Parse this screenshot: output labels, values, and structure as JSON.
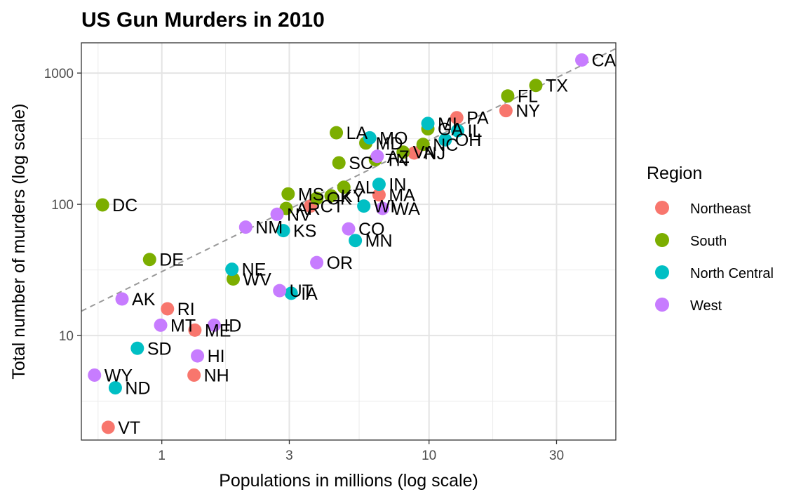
{
  "chart_data": {
    "type": "scatter",
    "title": "US Gun Murders in 2010",
    "xlabel": "Populations in millions (log scale)",
    "ylabel": "Total number of murders (log scale)",
    "x_scale": "log10",
    "y_scale": "log10",
    "xlim": [
      0.5,
      50
    ],
    "ylim": [
      1.6,
      1700
    ],
    "x_ticks": [
      1,
      3,
      10,
      30
    ],
    "y_ticks": [
      10,
      100,
      1000
    ],
    "grid": true,
    "legend": {
      "title": "Region",
      "position": "right"
    },
    "reference_line": {
      "style": "dashed",
      "color": "#999999",
      "slope": 1,
      "intercept": 1.4872
    },
    "series": [
      {
        "name": "Northeast",
        "color": "#F8766D",
        "points": [
          {
            "label": "PA",
            "x": 12.7,
            "y": 457
          },
          {
            "label": "NY",
            "x": 19.4,
            "y": 517
          },
          {
            "label": "NJ",
            "x": 8.8,
            "y": 246
          },
          {
            "label": "MA",
            "x": 6.5,
            "y": 118
          },
          {
            "label": "CT",
            "x": 3.6,
            "y": 97
          },
          {
            "label": "RI",
            "x": 1.05,
            "y": 16
          },
          {
            "label": "ME",
            "x": 1.33,
            "y": 11
          },
          {
            "label": "NH",
            "x": 1.32,
            "y": 5
          },
          {
            "label": "VT",
            "x": 0.63,
            "y": 2
          }
        ]
      },
      {
        "name": "South",
        "color": "#7CAE00",
        "points": [
          {
            "label": "TX",
            "x": 25.1,
            "y": 805
          },
          {
            "label": "FL",
            "x": 19.7,
            "y": 669
          },
          {
            "label": "GA",
            "x": 9.9,
            "y": 376
          },
          {
            "label": "NC",
            "x": 9.5,
            "y": 286
          },
          {
            "label": "VA",
            "x": 8.0,
            "y": 250
          },
          {
            "label": "TN",
            "x": 6.3,
            "y": 219
          },
          {
            "label": "MD",
            "x": 5.8,
            "y": 293
          },
          {
            "label": "LA",
            "x": 4.5,
            "y": 351
          },
          {
            "label": "SC",
            "x": 4.6,
            "y": 207
          },
          {
            "label": "AL",
            "x": 4.8,
            "y": 135
          },
          {
            "label": "KY",
            "x": 4.3,
            "y": 116
          },
          {
            "label": "OK",
            "x": 3.8,
            "y": 111
          },
          {
            "label": "MS",
            "x": 2.97,
            "y": 120
          },
          {
            "label": "AR",
            "x": 2.92,
            "y": 93
          },
          {
            "label": "WV",
            "x": 1.85,
            "y": 27
          },
          {
            "label": "DE",
            "x": 0.9,
            "y": 38
          },
          {
            "label": "DC",
            "x": 0.6,
            "y": 99
          }
        ]
      },
      {
        "name": "North Central",
        "color": "#00BFC4",
        "points": [
          {
            "label": "IL",
            "x": 12.8,
            "y": 364
          },
          {
            "label": "OH",
            "x": 11.5,
            "y": 310
          },
          {
            "label": "MI",
            "x": 9.9,
            "y": 413
          },
          {
            "label": "MO",
            "x": 6.0,
            "y": 321
          },
          {
            "label": "IN",
            "x": 6.5,
            "y": 142
          },
          {
            "label": "WI",
            "x": 5.7,
            "y": 97
          },
          {
            "label": "MN",
            "x": 5.3,
            "y": 53
          },
          {
            "label": "IA",
            "x": 3.05,
            "y": 21
          },
          {
            "label": "KS",
            "x": 2.85,
            "y": 63
          },
          {
            "label": "NE",
            "x": 1.83,
            "y": 32
          },
          {
            "label": "SD",
            "x": 0.81,
            "y": 8
          },
          {
            "label": "ND",
            "x": 0.67,
            "y": 4
          }
        ]
      },
      {
        "name": "West",
        "color": "#C77CFF",
        "points": [
          {
            "label": "CA",
            "x": 37.3,
            "y": 1257
          },
          {
            "label": "AZ",
            "x": 6.4,
            "y": 232
          },
          {
            "label": "WA",
            "x": 6.7,
            "y": 93
          },
          {
            "label": "CO",
            "x": 5.0,
            "y": 65
          },
          {
            "label": "OR",
            "x": 3.8,
            "y": 36
          },
          {
            "label": "NV",
            "x": 2.7,
            "y": 84
          },
          {
            "label": "NM",
            "x": 2.06,
            "y": 67
          },
          {
            "label": "UT",
            "x": 2.76,
            "y": 22
          },
          {
            "label": "ID",
            "x": 1.57,
            "y": 12
          },
          {
            "label": "HI",
            "x": 1.36,
            "y": 7
          },
          {
            "label": "MT",
            "x": 0.99,
            "y": 12
          },
          {
            "label": "AK",
            "x": 0.71,
            "y": 19
          },
          {
            "label": "WY",
            "x": 0.56,
            "y": 5
          }
        ]
      }
    ]
  }
}
